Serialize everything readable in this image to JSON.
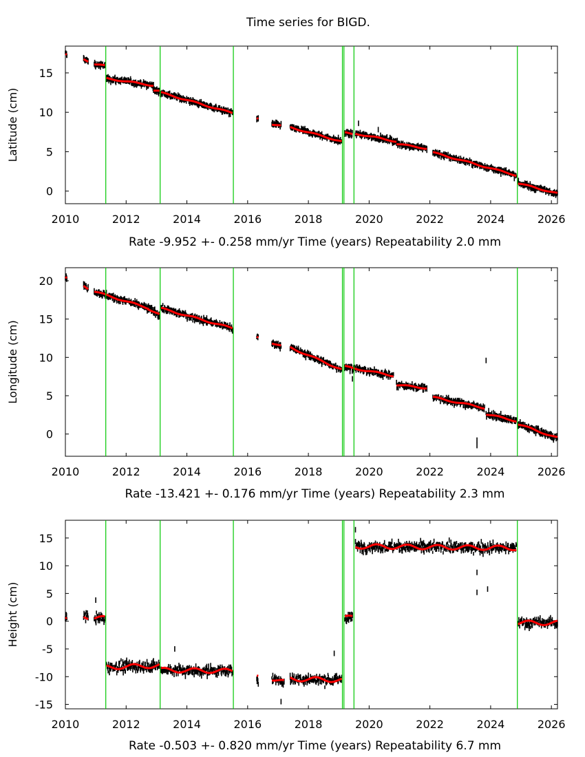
{
  "figure": {
    "title": "Time series for BIGD."
  },
  "colors": {
    "data": "#000000",
    "model": "#ff0000",
    "breaks": "#00c800",
    "axes": "#000000"
  },
  "chart_data": [
    {
      "type": "scatter",
      "name": "latitude",
      "ylabel": "Latitude (cm)",
      "caption": "Rate -9.952 +- 0.258 mm/yr    Time (years)    Repeatability 2.0 mm",
      "xlim": [
        2010,
        2026.2
      ],
      "ylim": [
        -1.6,
        18.4
      ],
      "xticks": [
        2010,
        2012,
        2014,
        2016,
        2018,
        2020,
        2022,
        2024,
        2026
      ],
      "yticks": [
        0,
        5,
        10,
        15
      ],
      "breaks": [
        2011.33,
        2013.12,
        2015.53,
        2019.12,
        2019.17,
        2019.5,
        2024.88
      ],
      "segments": [
        {
          "x0": 2010.0,
          "x1": 2010.05,
          "y0": 17.4,
          "y1": 17.3
        },
        {
          "x0": 2010.6,
          "x1": 2010.75,
          "y0": 16.8,
          "y1": 16.5
        },
        {
          "x0": 2010.95,
          "x1": 2011.3,
          "y0": 16.1,
          "y1": 15.9
        },
        {
          "x0": 2011.35,
          "x1": 2012.9,
          "y0": 14.3,
          "y1": 13.4
        },
        {
          "x0": 2012.9,
          "x1": 2013.1,
          "y0": 12.8,
          "y1": 12.7
        },
        {
          "x0": 2013.15,
          "x1": 2015.5,
          "y0": 12.5,
          "y1": 9.9
        },
        {
          "x0": 2016.3,
          "x1": 2016.35,
          "y0": 9.2,
          "y1": 9.1
        },
        {
          "x0": 2016.8,
          "x1": 2017.1,
          "y0": 8.5,
          "y1": 8.3
        },
        {
          "x0": 2017.4,
          "x1": 2019.1,
          "y0": 8.1,
          "y1": 6.3
        },
        {
          "x0": 2019.2,
          "x1": 2019.45,
          "y0": 7.4,
          "y1": 7.2
        },
        {
          "x0": 2019.55,
          "x1": 2020.9,
          "y0": 7.3,
          "y1": 6.3
        },
        {
          "x0": 2020.9,
          "x1": 2021.9,
          "y0": 6.0,
          "y1": 5.4
        },
        {
          "x0": 2022.1,
          "x1": 2024.85,
          "y0": 4.9,
          "y1": 2.0
        },
        {
          "x0": 2024.9,
          "x1": 2026.2,
          "y0": 1.0,
          "y1": -0.3
        }
      ],
      "outliers": [
        [
          2019.65,
          8.6
        ],
        [
          2020.3,
          7.8
        ]
      ]
    },
    {
      "type": "scatter",
      "name": "longitude",
      "ylabel": "Longitude (cm)",
      "caption": "Rate -13.421 +- 0.176 mm/yr    Time (years)    Repeatability 2.3 mm",
      "xlim": [
        2010,
        2026.2
      ],
      "ylim": [
        -2.9,
        21.7
      ],
      "xticks": [
        2010,
        2012,
        2014,
        2016,
        2018,
        2020,
        2022,
        2024,
        2026
      ],
      "yticks": [
        0,
        5,
        10,
        15,
        20
      ],
      "breaks": [
        2011.33,
        2013.12,
        2015.53,
        2019.12,
        2019.17,
        2019.5,
        2024.88
      ],
      "segments": [
        {
          "x0": 2010.0,
          "x1": 2010.05,
          "y0": 20.5,
          "y1": 20.3
        },
        {
          "x0": 2010.6,
          "x1": 2010.75,
          "y0": 19.4,
          "y1": 19.0
        },
        {
          "x0": 2010.95,
          "x1": 2012.75,
          "y0": 18.6,
          "y1": 16.4
        },
        {
          "x0": 2012.7,
          "x1": 2013.1,
          "y0": 16.4,
          "y1": 15.6
        },
        {
          "x0": 2013.15,
          "x1": 2015.5,
          "y0": 16.4,
          "y1": 13.8
        },
        {
          "x0": 2016.3,
          "x1": 2016.35,
          "y0": 12.6,
          "y1": 12.5
        },
        {
          "x0": 2016.8,
          "x1": 2017.1,
          "y0": 11.9,
          "y1": 11.5
        },
        {
          "x0": 2017.4,
          "x1": 2019.1,
          "y0": 11.3,
          "y1": 8.4
        },
        {
          "x0": 2019.2,
          "x1": 2020.8,
          "y0": 8.8,
          "y1": 7.6
        },
        {
          "x0": 2020.9,
          "x1": 2021.9,
          "y0": 6.4,
          "y1": 6.0
        },
        {
          "x0": 2022.1,
          "x1": 2023.8,
          "y0": 4.8,
          "y1": 3.4
        },
        {
          "x0": 2023.85,
          "x1": 2024.85,
          "y0": 2.6,
          "y1": 1.7
        },
        {
          "x0": 2024.9,
          "x1": 2026.2,
          "y0": 1.3,
          "y1": -0.5
        }
      ],
      "outliers": [
        [
          2023.55,
          -0.8
        ],
        [
          2023.55,
          -1.5
        ],
        [
          2023.85,
          9.6
        ],
        [
          2019.45,
          7.2
        ]
      ]
    },
    {
      "type": "scatter",
      "name": "height",
      "ylabel": "Height (cm)",
      "caption": "Rate -0.503 +- 0.820 mm/yr    Time (years)    Repeatability 6.7 mm",
      "xlim": [
        2010,
        2026.2
      ],
      "ylim": [
        -15.8,
        18.2
      ],
      "xticks": [
        2010,
        2012,
        2014,
        2016,
        2018,
        2020,
        2022,
        2024,
        2026
      ],
      "yticks": [
        -15,
        -10,
        -5,
        0,
        5,
        10,
        15
      ],
      "breaks": [
        2011.33,
        2013.12,
        2015.53,
        2019.12,
        2019.17,
        2019.5,
        2024.88
      ],
      "segments": [
        {
          "x0": 2010.0,
          "x1": 2010.05,
          "y0": 0.5,
          "y1": 0.5
        },
        {
          "x0": 2010.6,
          "x1": 2010.75,
          "y0": 1.0,
          "y1": 0.8
        },
        {
          "x0": 2010.95,
          "x1": 2011.3,
          "y0": 0.6,
          "y1": 0.5
        },
        {
          "x0": 2011.35,
          "x1": 2013.1,
          "y0": -8.3,
          "y1": -8.0
        },
        {
          "x0": 2013.15,
          "x1": 2015.5,
          "y0": -8.8,
          "y1": -9.0
        },
        {
          "x0": 2016.3,
          "x1": 2016.35,
          "y0": -10.2,
          "y1": -10.2
        },
        {
          "x0": 2016.8,
          "x1": 2017.2,
          "y0": -10.3,
          "y1": -11.0
        },
        {
          "x0": 2017.4,
          "x1": 2019.1,
          "y0": -10.4,
          "y1": -10.6
        },
        {
          "x0": 2019.2,
          "x1": 2019.45,
          "y0": 0.5,
          "y1": 0.8
        },
        {
          "x0": 2019.55,
          "x1": 2024.85,
          "y0": 13.5,
          "y1": 13.2
        },
        {
          "x0": 2024.9,
          "x1": 2026.2,
          "y0": -0.3,
          "y1": -0.3
        }
      ],
      "outliers": [
        [
          2011.0,
          3.8
        ],
        [
          2013.6,
          -5.0
        ],
        [
          2018.85,
          -5.8
        ],
        [
          2023.55,
          8.8
        ],
        [
          2023.55,
          5.2
        ],
        [
          2023.9,
          5.8
        ],
        [
          2019.55,
          16.5
        ],
        [
          2017.1,
          -14.5
        ]
      ]
    }
  ]
}
